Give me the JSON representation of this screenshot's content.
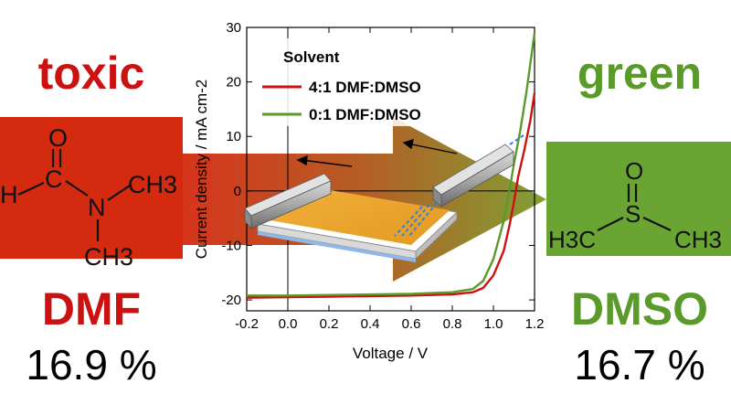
{
  "left_panel": {
    "tag": "toxic",
    "solvent": "DMF",
    "efficiency": "16.9 %",
    "color": "#cc1111",
    "molecule_atoms": {
      "o": "O",
      "h": "H",
      "c": "C",
      "n": "N",
      "ch3_top": "CH3",
      "ch3_bottom": "CH3"
    }
  },
  "right_panel": {
    "tag": "green",
    "solvent": "DMSO",
    "efficiency": "16.7 %",
    "color": "#5a9a2a",
    "molecule_atoms": {
      "o": "O",
      "s": "S",
      "h3c": "H3C",
      "ch3": "CH3"
    }
  },
  "chart_data": {
    "type": "line",
    "xlabel": "Voltage / V",
    "ylabel": "Current density / mA cm-2",
    "xlim": [
      -0.2,
      1.2
    ],
    "ylim": [
      -22,
      30
    ],
    "xticks": [
      "-0.2",
      "0.0",
      "0.2",
      "0.4",
      "0.6",
      "0.8",
      "1.0",
      "1.2"
    ],
    "xtick_values": [
      -0.2,
      0.0,
      0.2,
      0.4,
      0.6,
      0.8,
      1.0,
      1.2
    ],
    "yticks": [
      "-20",
      "-10",
      "0",
      "10",
      "20",
      "30"
    ],
    "ytick_values": [
      -20,
      -10,
      0,
      10,
      20,
      30
    ],
    "legend_title": "Solvent",
    "legend_position": "top-left",
    "series": [
      {
        "name": "4:1 DMF:DMSO",
        "color": "#cc1111",
        "points": [
          [
            -0.2,
            -19.6
          ],
          [
            0.0,
            -19.5
          ],
          [
            0.2,
            -19.4
          ],
          [
            0.4,
            -19.3
          ],
          [
            0.6,
            -19.2
          ],
          [
            0.8,
            -19.0
          ],
          [
            0.9,
            -18.6
          ],
          [
            0.95,
            -17.8
          ],
          [
            1.0,
            -15.5
          ],
          [
            1.05,
            -11.0
          ],
          [
            1.08,
            -6.0
          ],
          [
            1.1,
            -2.0
          ],
          [
            1.12,
            2.5
          ],
          [
            1.15,
            7.5
          ],
          [
            1.18,
            13.0
          ],
          [
            1.2,
            18.0
          ]
        ]
      },
      {
        "name": "0:1 DMF:DMSO",
        "color": "#5a9a2a",
        "points": [
          [
            -0.2,
            -19.2
          ],
          [
            0.0,
            -19.2
          ],
          [
            0.2,
            -19.1
          ],
          [
            0.4,
            -19.0
          ],
          [
            0.6,
            -18.9
          ],
          [
            0.8,
            -18.6
          ],
          [
            0.9,
            -18.0
          ],
          [
            0.95,
            -16.5
          ],
          [
            1.0,
            -12.5
          ],
          [
            1.05,
            -5.5
          ],
          [
            1.08,
            0.5
          ],
          [
            1.1,
            5.0
          ],
          [
            1.13,
            11.0
          ],
          [
            1.16,
            18.0
          ],
          [
            1.2,
            29.0
          ]
        ]
      }
    ]
  }
}
